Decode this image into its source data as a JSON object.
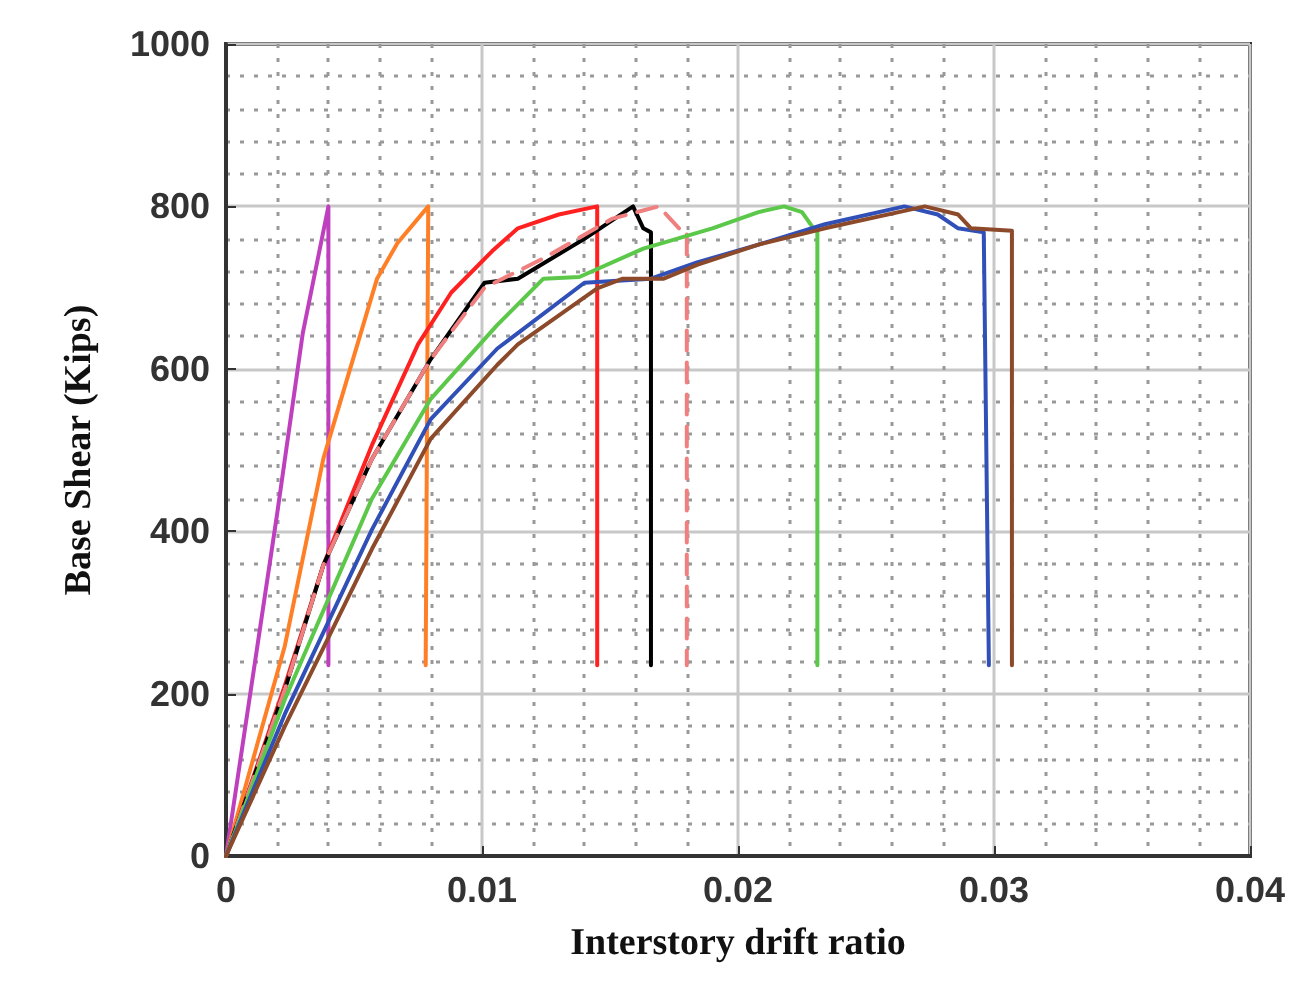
{
  "chart_data": {
    "type": "line",
    "xlabel": "Interstory drift ratio",
    "ylabel": "Base Shear (Kips)",
    "xlim": [
      0,
      0.04
    ],
    "xticks": [
      0,
      0.01,
      0.02,
      0.03,
      0.04
    ],
    "ylim": [
      0,
      1000
    ],
    "yticks": [
      0,
      200,
      400,
      600,
      800,
      1000
    ],
    "grid": true,
    "marker": "none",
    "line_style": "solid",
    "series": [
      {
        "color": "#bf40bf",
        "x": [
          0,
          0.002,
          0.003,
          0.004,
          0.004
        ],
        "values": [
          0,
          422,
          644,
          800,
          235
        ]
      },
      {
        "color": "#ff7f27",
        "x": [
          0,
          0.0023,
          0.0038,
          0.0059,
          0.0067,
          0.0079,
          0.0078
        ],
        "values": [
          0,
          259,
          489,
          711,
          755,
          800,
          235
        ]
      },
      {
        "color": "#ff2020",
        "x": [
          0,
          0.0023,
          0.0038,
          0.0057,
          0.0075,
          0.0088,
          0.0104,
          0.0114,
          0.013,
          0.0145,
          0.0145
        ],
        "values": [
          0,
          210,
          358,
          506,
          630,
          694,
          745,
          773,
          790,
          800,
          235
        ]
      },
      {
        "color": "#000000",
        "x": [
          0,
          0.0023,
          0.0038,
          0.0057,
          0.008,
          0.0101,
          0.0114,
          0.014,
          0.0159,
          0.0163,
          0.0166,
          0.0166
        ],
        "values": [
          0,
          205,
          358,
          489,
          612,
          706,
          711,
          760,
          800,
          773,
          768,
          235
        ]
      },
      {
        "color": "#f08080",
        "line_style": "dashed",
        "x": [
          0,
          0.0023,
          0.0038,
          0.0057,
          0.008,
          0.0101,
          0.0124,
          0.0151,
          0.0169,
          0.0177,
          0.018,
          0.018
        ],
        "values": [
          0,
          205,
          358,
          489,
          612,
          700,
          736,
          785,
          800,
          773,
          770,
          235
        ]
      },
      {
        "color": "#5cc84a",
        "x": [
          0,
          0.0023,
          0.0057,
          0.008,
          0.0106,
          0.0124,
          0.0138,
          0.0163,
          0.019,
          0.0208,
          0.0218,
          0.0225,
          0.0229,
          0.0231,
          0.0231
        ],
        "values": [
          0,
          193,
          440,
          563,
          654,
          711,
          713,
          748,
          773,
          793,
          800,
          793,
          775,
          770,
          235
        ]
      },
      {
        "color": "#3050b8",
        "x": [
          0,
          0.0023,
          0.0057,
          0.008,
          0.0106,
          0.0114,
          0.014,
          0.0166,
          0.0184,
          0.0208,
          0.0234,
          0.0265,
          0.0278,
          0.0286,
          0.0296,
          0.0298
        ],
        "values": [
          0,
          175,
          402,
          538,
          625,
          644,
          706,
          711,
          731,
          753,
          778,
          800,
          790,
          773,
          768,
          235
        ]
      },
      {
        "color": "#8c4a2a",
        "x": [
          0,
          0.0023,
          0.0057,
          0.008,
          0.0106,
          0.0114,
          0.0145,
          0.0155,
          0.0171,
          0.0184,
          0.0208,
          0.0234,
          0.0273,
          0.0286,
          0.0291,
          0.0307,
          0.0307
        ],
        "values": [
          0,
          160,
          378,
          514,
          605,
          630,
          699,
          711,
          711,
          728,
          753,
          773,
          800,
          790,
          773,
          770,
          235
        ]
      }
    ]
  }
}
